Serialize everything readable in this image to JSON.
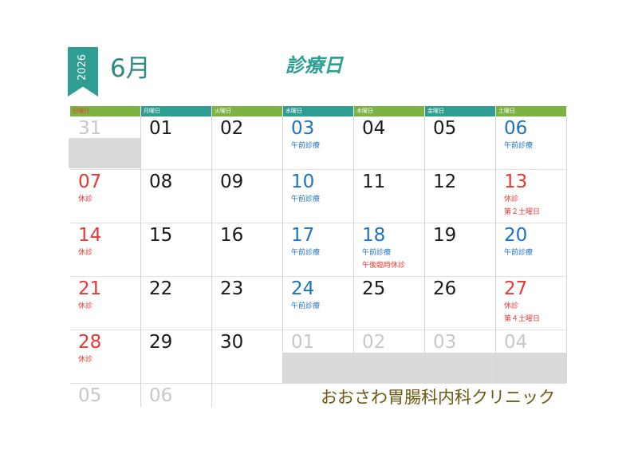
{
  "year": "2026",
  "month": "6月",
  "title": "診療日",
  "weekdays": [
    "日曜日",
    "月曜日",
    "火曜日",
    "水曜日",
    "木曜日",
    "金曜日",
    "土曜日"
  ],
  "weeks": [
    [
      {
        "day": "31",
        "color": "gray",
        "notes": []
      },
      {
        "day": "01",
        "color": "black",
        "notes": []
      },
      {
        "day": "02",
        "color": "black",
        "notes": []
      },
      {
        "day": "03",
        "color": "blue",
        "notes": [
          {
            "text": "午前診療",
            "color": "blue"
          }
        ]
      },
      {
        "day": "04",
        "color": "black",
        "notes": []
      },
      {
        "day": "05",
        "color": "black",
        "notes": []
      },
      {
        "day": "06",
        "color": "blue",
        "notes": [
          {
            "text": "午前診療",
            "color": "blue"
          }
        ]
      }
    ],
    [
      {
        "day": "07",
        "color": "red",
        "notes": [
          {
            "text": "休診",
            "color": "red"
          }
        ]
      },
      {
        "day": "08",
        "color": "black",
        "notes": []
      },
      {
        "day": "09",
        "color": "black",
        "notes": []
      },
      {
        "day": "10",
        "color": "blue",
        "notes": [
          {
            "text": "午前診療",
            "color": "blue"
          }
        ]
      },
      {
        "day": "11",
        "color": "black",
        "notes": []
      },
      {
        "day": "12",
        "color": "black",
        "notes": []
      },
      {
        "day": "13",
        "color": "red",
        "notes": [
          {
            "text": "休診",
            "color": "red"
          },
          {
            "text": "第２土曜日",
            "color": "red"
          }
        ]
      }
    ],
    [
      {
        "day": "14",
        "color": "red",
        "notes": [
          {
            "text": "休診",
            "color": "red"
          }
        ]
      },
      {
        "day": "15",
        "color": "black",
        "notes": []
      },
      {
        "day": "16",
        "color": "black",
        "notes": []
      },
      {
        "day": "17",
        "color": "blue",
        "notes": [
          {
            "text": "午前診療",
            "color": "blue"
          }
        ]
      },
      {
        "day": "18",
        "color": "blue",
        "notes": [
          {
            "text": "午前診療",
            "color": "blue"
          },
          {
            "text": "午後臨時休診",
            "color": "red"
          }
        ]
      },
      {
        "day": "19",
        "color": "black",
        "notes": []
      },
      {
        "day": "20",
        "color": "blue",
        "notes": [
          {
            "text": "午前診療",
            "color": "blue"
          }
        ]
      }
    ],
    [
      {
        "day": "21",
        "color": "red",
        "notes": [
          {
            "text": "休診",
            "color": "red"
          }
        ]
      },
      {
        "day": "22",
        "color": "black",
        "notes": []
      },
      {
        "day": "23",
        "color": "black",
        "notes": []
      },
      {
        "day": "24",
        "color": "blue",
        "notes": [
          {
            "text": "午前診療",
            "color": "blue"
          }
        ]
      },
      {
        "day": "25",
        "color": "black",
        "notes": []
      },
      {
        "day": "26",
        "color": "black",
        "notes": []
      },
      {
        "day": "27",
        "color": "red",
        "notes": [
          {
            "text": "休診",
            "color": "red"
          },
          {
            "text": "第４土曜日",
            "color": "red"
          }
        ]
      }
    ],
    [
      {
        "day": "28",
        "color": "red",
        "notes": [
          {
            "text": "休診",
            "color": "red"
          }
        ]
      },
      {
        "day": "29",
        "color": "black",
        "notes": []
      },
      {
        "day": "30",
        "color": "black",
        "notes": []
      },
      {
        "day": "01",
        "color": "gray",
        "notes": []
      },
      {
        "day": "02",
        "color": "gray",
        "notes": []
      },
      {
        "day": "03",
        "color": "gray",
        "notes": []
      },
      {
        "day": "04",
        "color": "gray",
        "notes": []
      }
    ],
    [
      {
        "day": "05",
        "color": "gray",
        "notes": []
      },
      {
        "day": "06",
        "color": "gray",
        "notes": []
      }
    ]
  ],
  "clinic_name": "おおさわ胃腸科内科クリニック",
  "colors": {
    "teal": "#2e9d92",
    "green": "#7cb342",
    "red": "#e53935",
    "blue": "#1e73be",
    "gray_text": "#c8c8c8",
    "gray_fill": "#d9d9d9",
    "clinic_text": "#6d5a12"
  }
}
